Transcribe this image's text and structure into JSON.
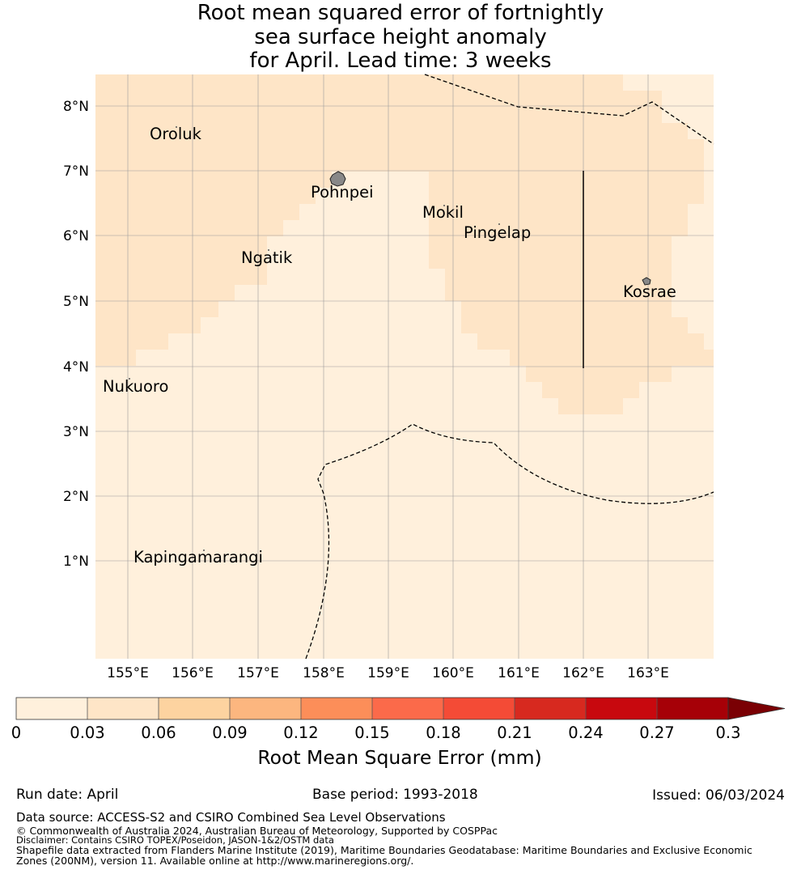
{
  "title": {
    "line1": "Root mean squared error of fortnightly",
    "line2": "sea surface height anomaly",
    "line3": "for April. Lead time: 3 weeks"
  },
  "map": {
    "lon_ticks": [
      "155°E",
      "156°E",
      "157°E",
      "158°E",
      "159°E",
      "160°E",
      "161°E",
      "162°E",
      "163°E"
    ],
    "lat_ticks": [
      "8°N",
      "7°N",
      "6°N",
      "5°N",
      "4°N",
      "3°N",
      "2°N",
      "1°N"
    ],
    "islands": [
      "Oroluk",
      "Pohnpei",
      "Mokil",
      "Pingelap",
      "Ngatik",
      "Kosrae",
      "Nukuoro",
      "Kapingamarangi"
    ],
    "colors": {
      "level1": "#fff0dc",
      "level2": "#fee5c7",
      "grid": "#9a9a9a"
    }
  },
  "colorbar": {
    "label": "Root Mean Square Error (mm)",
    "ticks": [
      "0",
      "0.03",
      "0.06",
      "0.09",
      "0.12",
      "0.15",
      "0.18",
      "0.21",
      "0.24",
      "0.27",
      "0.3"
    ],
    "colors": [
      "#fff0dc",
      "#fee5c7",
      "#fdd3a0",
      "#fcb67f",
      "#fc8e59",
      "#fb6a4a",
      "#f44b36",
      "#d7291f",
      "#c8080e",
      "#a60007",
      "#7a0004"
    ]
  },
  "footer": {
    "run_date": "Run date: April",
    "base_period": "Base period: 1993-2018",
    "issued": "Issued: 06/03/2024",
    "data_source": "Data source: ACCESS-S2 and CSIRO Combined Sea Level Observations",
    "copyright": "© Commonwealth of Australia 2024, Australian Bureau of Meteorology, Supported by COSPPac",
    "disclaimer": "Disclaimer: Contains CSIRO TOPEX/Poseidon, JASON-1&2/OSTM data",
    "shapefile": "Shapefile data extracted from Flanders Marine Institute (2019), Maritime Boundaries Geodatabase: Maritime Boundaries and Exclusive Economic Zones (200NM), version 11. Available online at http://www.marineregions.org/."
  }
}
